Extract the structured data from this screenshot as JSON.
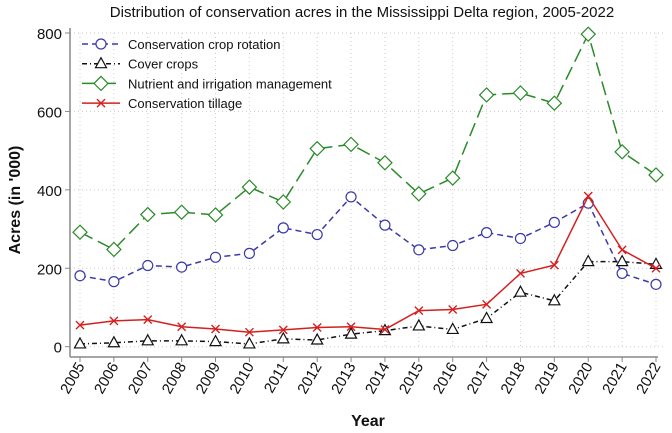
{
  "chart_data": {
    "type": "line",
    "title": "Distribution of conservation acres in the Mississippi Delta region, 2005-2022",
    "xlabel": "Year",
    "ylabel": "Acres (in '000)",
    "ylim": [
      0,
      800
    ],
    "yticks": [
      0,
      200,
      400,
      600,
      800
    ],
    "grid": true,
    "legend": "top-left",
    "x": [
      2005,
      2006,
      2007,
      2008,
      2009,
      2010,
      2011,
      2012,
      2013,
      2014,
      2015,
      2016,
      2017,
      2018,
      2019,
      2020,
      2021,
      2022
    ],
    "series": [
      {
        "name": "Conservation crop rotation",
        "color": "#3a3aa8",
        "marker": "circle",
        "dash": "dashed",
        "values": [
          181,
          166,
          207,
          203,
          228,
          238,
          303,
          286,
          382,
          310,
          247,
          258,
          291,
          276,
          317,
          366,
          187,
          159
        ]
      },
      {
        "name": "Cover crops",
        "color": "#111111",
        "marker": "triangle",
        "dash": "dash-dot",
        "values": [
          7,
          10,
          15,
          15,
          13,
          7,
          20,
          17,
          32,
          41,
          53,
          44,
          72,
          139,
          117,
          217,
          217,
          210
        ]
      },
      {
        "name": "Nutrient and irrigation management",
        "color": "#2a8a2a",
        "marker": "diamond",
        "dash": "long-dash",
        "values": [
          292,
          248,
          337,
          343,
          336,
          407,
          369,
          505,
          516,
          469,
          390,
          430,
          642,
          647,
          621,
          797,
          497,
          438
        ]
      },
      {
        "name": "Conservation tillage",
        "color": "#d42020",
        "marker": "x",
        "dash": "solid",
        "values": [
          55,
          66,
          69,
          51,
          45,
          37,
          43,
          49,
          51,
          44,
          92,
          95,
          108,
          187,
          208,
          384,
          247,
          200
        ]
      }
    ]
  }
}
